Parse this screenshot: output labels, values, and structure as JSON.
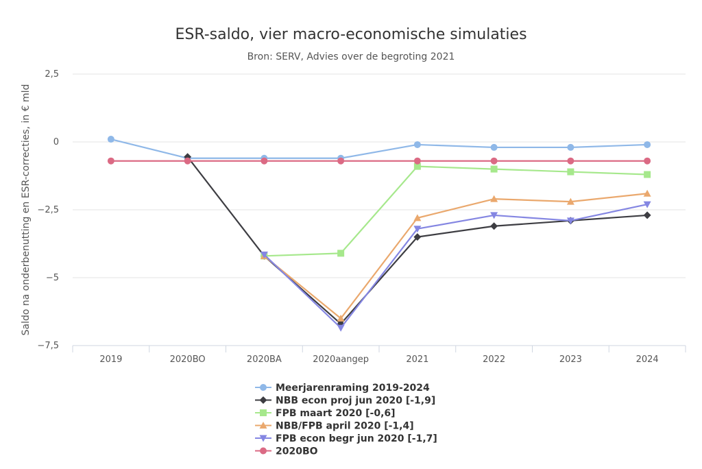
{
  "chart_data": {
    "type": "line",
    "title": "ESR-saldo, vier macro-economische simulaties",
    "subtitle": "Bron: SERV, Advies over de begroting 2021",
    "xlabel": "",
    "ylabel": "Saldo na onderbenutting en ESR-correcties, in € mld",
    "categories": [
      "2019",
      "2020BO",
      "2020BA",
      "2020aangep",
      "2021",
      "2022",
      "2023",
      "2024"
    ],
    "ylim": [
      -7.5,
      2.5
    ],
    "yticks": [
      2.5,
      0,
      -2.5,
      -5,
      -7.5
    ],
    "ytick_labels": [
      "2,5",
      "0",
      "−2,5",
      "−5",
      "−7,5"
    ],
    "grid": true,
    "legend_position": "bottom",
    "series": [
      {
        "name": "Meerjarenraming 2019-2024",
        "color": "#8fb8e8",
        "marker": "circle",
        "values": [
          0.1,
          -0.6,
          -0.6,
          -0.6,
          -0.1,
          -0.2,
          -0.2,
          -0.1
        ]
      },
      {
        "name": "NBB econ proj jun 2020 [-1,9]",
        "color": "#3d3d42",
        "marker": "diamond",
        "values": [
          null,
          -0.55,
          -4.2,
          -6.7,
          -3.5,
          -3.1,
          -2.9,
          -2.7
        ]
      },
      {
        "name": "FPB maart 2020 [-0,6]",
        "color": "#a6e88c",
        "marker": "square",
        "values": [
          null,
          null,
          -4.2,
          -4.1,
          -0.9,
          -1.0,
          -1.1,
          -1.2
        ]
      },
      {
        "name": "NBB/FPB april 2020 [-1,4]",
        "color": "#eaa86d",
        "marker": "triangle-up",
        "values": [
          null,
          null,
          -4.2,
          -6.5,
          -2.8,
          -2.1,
          -2.2,
          -1.9
        ]
      },
      {
        "name": "FPB econ begr jun 2020 [-1,7]",
        "color": "#8486e2",
        "marker": "triangle-down",
        "values": [
          null,
          null,
          -4.15,
          -6.85,
          -3.2,
          -2.7,
          -2.9,
          -2.3
        ]
      },
      {
        "name": "2020BO",
        "color": "#db6a84",
        "marker": "circle",
        "values": [
          -0.7,
          -0.7,
          -0.7,
          -0.7,
          -0.7,
          -0.7,
          -0.7,
          -0.7
        ]
      }
    ]
  }
}
